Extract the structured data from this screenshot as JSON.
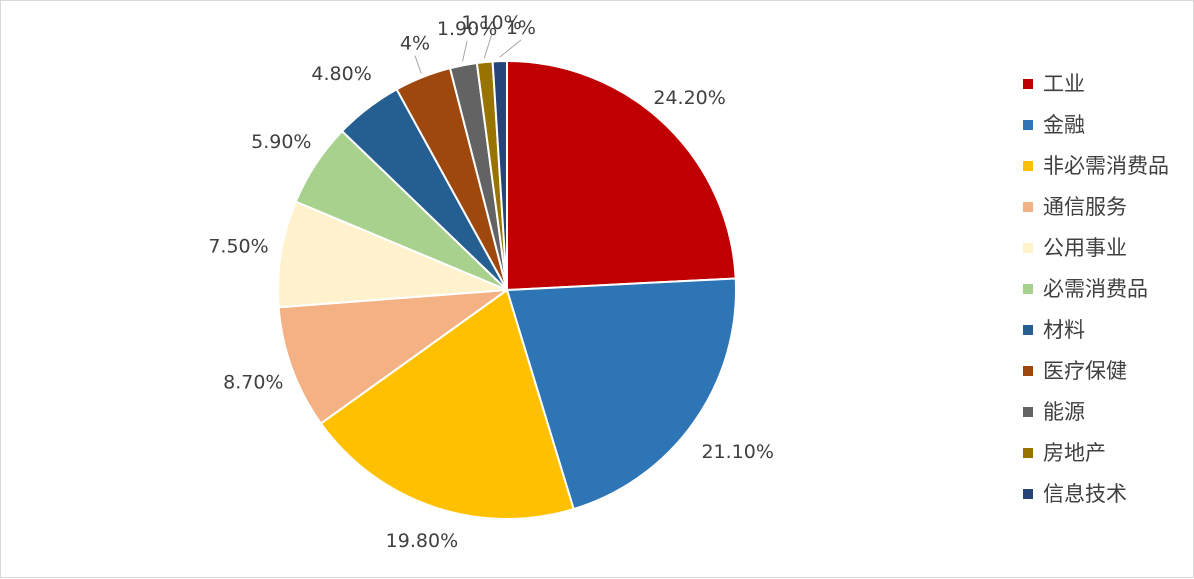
{
  "chart_data": {
    "type": "pie",
    "title": "",
    "categories": [
      "工业",
      "金融",
      "非必需消费品",
      "通信服务",
      "公用事业",
      "必需消费品",
      "材料",
      "医疗保健",
      "能源",
      "房地产",
      "信息技术"
    ],
    "values": [
      24.2,
      21.1,
      19.8,
      8.7,
      7.5,
      5.9,
      4.8,
      4.0,
      1.9,
      1.1,
      1.0
    ],
    "data_labels": [
      "24.20%",
      "21.10%",
      "19.80%",
      "8.70%",
      "7.50%",
      "5.90%",
      "4.80%",
      "4%",
      "1.90%",
      "1.10%",
      "1%"
    ],
    "colors": [
      "#C00000",
      "#2E75B6",
      "#FFC000",
      "#F4B183",
      "#FFF2CC",
      "#A9D18E",
      "#255E91",
      "#9E480E",
      "#636363",
      "#997300",
      "#264478"
    ],
    "start_angle_deg": 0,
    "direction": "clockwise",
    "legend_position": "right"
  }
}
